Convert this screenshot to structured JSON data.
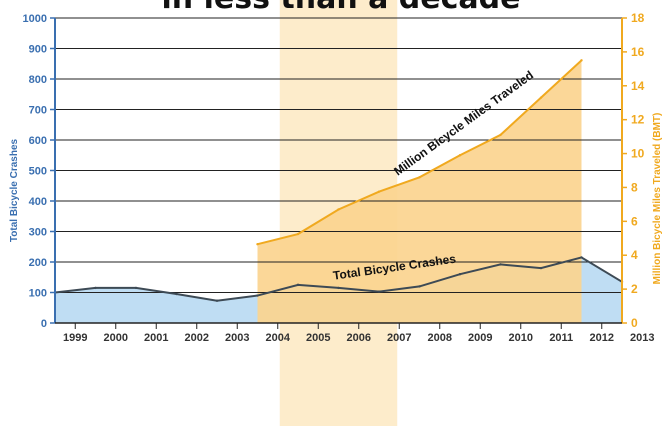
{
  "chart_data": {
    "type": "area",
    "title": "in less than a decade",
    "categories": [
      "1999",
      "2000",
      "2001",
      "2002",
      "2003",
      "2004",
      "2005",
      "2006",
      "2007",
      "2008",
      "2009",
      "2010",
      "2011",
      "2012",
      "2013"
    ],
    "highlight_range": [
      "2005",
      "2007"
    ],
    "y_left": {
      "label": "Total Bicycle Crashes",
      "lim": [
        0,
        1000
      ],
      "ticks": [
        0,
        100,
        200,
        300,
        400,
        500,
        600,
        700,
        800,
        900,
        1000
      ]
    },
    "y_right": {
      "label": "Million Bicycle Miles Traveled (BMT)",
      "lim": [
        0,
        18
      ],
      "ticks": [
        0,
        2,
        4,
        6,
        8,
        10,
        12,
        14,
        16,
        18
      ]
    },
    "series": [
      {
        "name": "Total Bicycle Crashes",
        "axis": "left",
        "color": "#bfddf3",
        "line_color": "#3d4a55",
        "values": [
          100,
          115,
          115,
          95,
          73,
          90,
          125,
          115,
          103,
          120,
          160,
          192,
          180,
          215,
          135
        ]
      },
      {
        "name": "Million Bicycle Miles Traveled",
        "axis": "right",
        "color": "#fbd48f",
        "line_color": "#f0a91f",
        "values": [
          null,
          null,
          null,
          null,
          null,
          4.65,
          5.25,
          6.7,
          7.75,
          8.6,
          9.9,
          11.1,
          13.3,
          15.5,
          null
        ]
      }
    ],
    "colors": {
      "left_axis": "#3a6fb0",
      "right_axis": "#f0a91f",
      "highlight": "#fdeccb",
      "grid": "#222222"
    }
  }
}
